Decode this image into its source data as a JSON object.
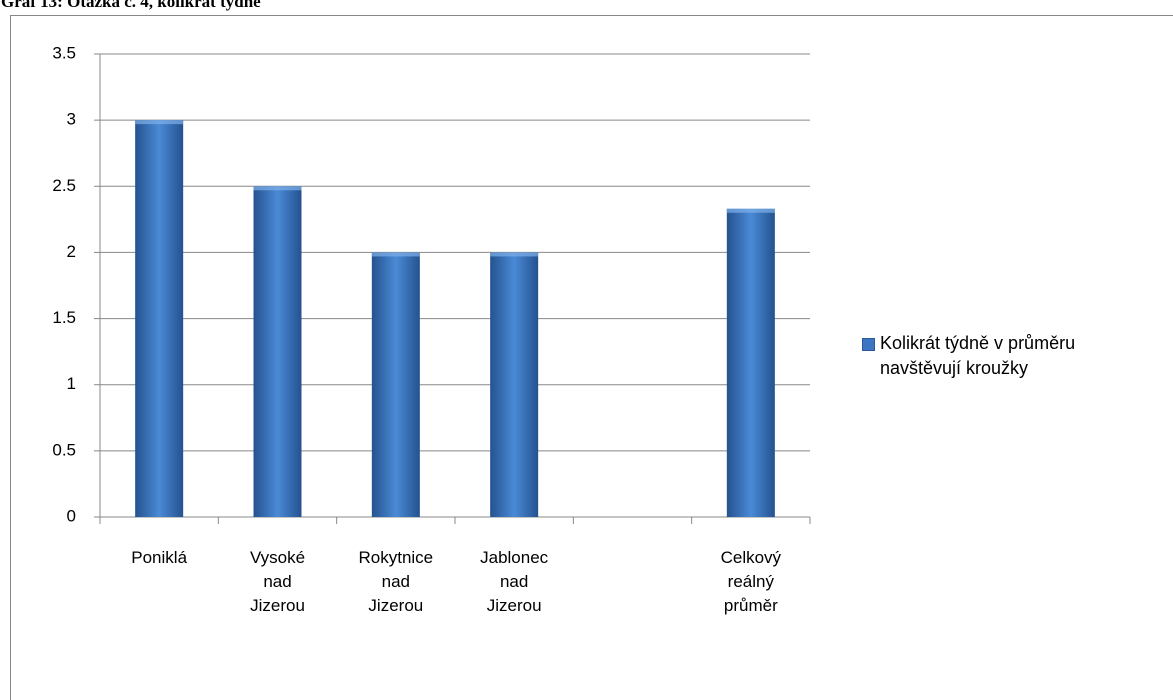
{
  "chart_data": {
    "type": "bar",
    "title": "Graf 13: Otázka č. 4, kolikrát týdně",
    "categories": [
      "Poniklá",
      "Vysoké nad Jizerou",
      "Rokytnice nad Jizerou",
      "Jablonec nad Jizerou",
      null,
      "Celkový reálný průměr"
    ],
    "series": [
      {
        "name": "Kolikrát týdně v průměru navštěvují kroužky",
        "color": "#3c75c0",
        "values": [
          3,
          2.5,
          2,
          2,
          null,
          2.33
        ]
      }
    ],
    "ylim": [
      0,
      3.5
    ],
    "yticks": [
      0,
      0.5,
      1,
      1.5,
      2,
      2.5,
      3,
      3.5
    ],
    "grid": true,
    "legend": "right"
  }
}
